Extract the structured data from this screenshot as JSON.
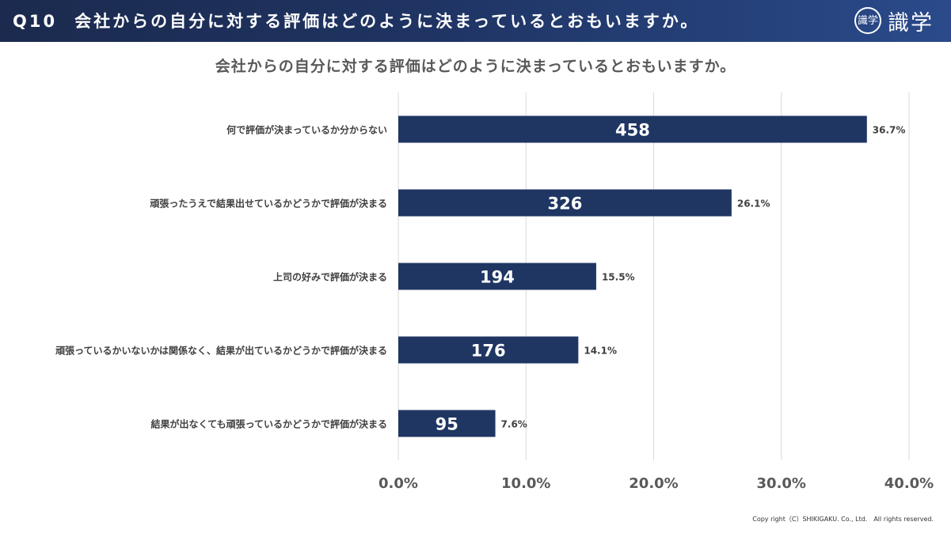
{
  "header": {
    "question_no": "Q10",
    "title": "会社からの自分に対する評価はどのように決まっているとおもいますか。",
    "logo_seal": "識学",
    "logo_text": "識学"
  },
  "colors": {
    "bar": "#1f3663",
    "header": "#1f3463",
    "grid": "#d9d9d9",
    "label": "#404040",
    "axis_label": "#595959"
  },
  "chart_data": {
    "type": "bar",
    "orientation": "horizontal",
    "title": "会社からの自分に対する評価はどのように決まっているとおもいますか。",
    "categories": [
      "何で評価が決まっているか分からない",
      "頑張ったうえで結果出せているかどうかで評価が決まる",
      "上司の好みで評価が決まる",
      "頑張っているかいないかは関係なく、結果が出ているかどうかで評価が決まる",
      "結果が出なくても頑張っているかどうかで評価が決まる"
    ],
    "counts": [
      458,
      326,
      194,
      176,
      95
    ],
    "values": [
      36.7,
      26.1,
      15.5,
      14.1,
      7.6
    ],
    "value_labels": [
      "36.7%",
      "26.1%",
      "15.5%",
      "14.1%",
      "7.6%"
    ],
    "xlim": [
      0,
      40
    ],
    "xticks": [
      "0.0%",
      "10.0%",
      "20.0%",
      "30.0%",
      "40.0%"
    ],
    "grid": true,
    "legend": "none"
  },
  "footer": {
    "copyright": "Copy right（C）SHIKIGAKU. Co., Ltd.　All rights reserved."
  }
}
